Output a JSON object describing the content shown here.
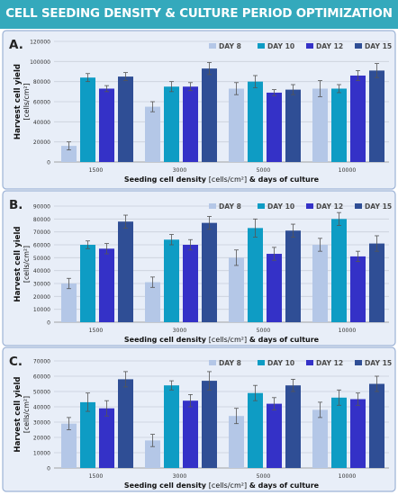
{
  "title": "CELL SEEDING DENSITY & CULTURE PERIOD OPTIMIZATION",
  "colors": {
    "header": "#34a9bc",
    "panel_background": "#e8eef8",
    "panel_border": "#9db3d6",
    "series": [
      "#b4c7e7",
      "#0e9cc4",
      "#3431c7",
      "#2f4e95"
    ]
  },
  "chart_data": [
    {
      "type": "bar",
      "panel_label": "A.",
      "categories": [
        "1500",
        "3000",
        "5000",
        "10000"
      ],
      "series": [
        {
          "name": "DAY 8",
          "values": [
            16000,
            55000,
            73000,
            73000
          ],
          "errors": [
            4000,
            5000,
            6000,
            8000
          ]
        },
        {
          "name": "DAY 10",
          "values": [
            84000,
            75000,
            80000,
            73000
          ],
          "errors": [
            4000,
            5000,
            6000,
            4000
          ]
        },
        {
          "name": "DAY 12",
          "values": [
            73000,
            75000,
            69000,
            86000
          ],
          "errors": [
            3000,
            4000,
            3000,
            5000
          ]
        },
        {
          "name": "DAY 15",
          "values": [
            85000,
            93000,
            72000,
            91000
          ],
          "errors": [
            4000,
            6000,
            5000,
            7000
          ]
        }
      ],
      "ylim": [
        0,
        120000
      ],
      "yticks": [
        "0",
        "20000",
        "40000",
        "60000",
        "80000",
        "100000",
        "120000"
      ],
      "ylabel_main": "Harvest cell yield",
      "ylabel_unit": "[cells/cm²]",
      "xlabel_a": "Seeding cell density ",
      "xlabel_b": "[cells/cm²]",
      "xlabel_c": " & days of culture",
      "grid": true,
      "legend": "top-right"
    },
    {
      "type": "bar",
      "panel_label": "B.",
      "categories": [
        "1500",
        "3000",
        "5000",
        "10000"
      ],
      "series": [
        {
          "name": "DAY 8",
          "values": [
            30000,
            31000,
            50000,
            60000
          ],
          "errors": [
            4000,
            4000,
            6000,
            5000
          ]
        },
        {
          "name": "DAY 10",
          "values": [
            60000,
            64000,
            73000,
            80000
          ],
          "errors": [
            3000,
            4000,
            7000,
            5000
          ]
        },
        {
          "name": "DAY 12",
          "values": [
            57000,
            60000,
            53000,
            51000
          ],
          "errors": [
            4000,
            4000,
            5000,
            4000
          ]
        },
        {
          "name": "DAY 15",
          "values": [
            78000,
            77000,
            71000,
            61000
          ],
          "errors": [
            5000,
            5000,
            5000,
            6000
          ]
        }
      ],
      "ylim": [
        0,
        90000
      ],
      "yticks": [
        "0",
        "10000",
        "20000",
        "30000",
        "40000",
        "50000",
        "60000",
        "70000",
        "80000",
        "90000"
      ],
      "ylabel_main": "Harvest cell yield",
      "ylabel_unit": "[cells/cm²]",
      "xlabel_a": "Seeding cell density ",
      "xlabel_b": "[cells/cm²]",
      "xlabel_c": " & days of culture",
      "grid": true,
      "legend": "top-right"
    },
    {
      "type": "bar",
      "panel_label": "C.",
      "categories": [
        "1500",
        "3000",
        "5000",
        "10000"
      ],
      "series": [
        {
          "name": "DAY 8",
          "values": [
            29000,
            18000,
            34000,
            38000
          ],
          "errors": [
            4000,
            4000,
            5000,
            5000
          ]
        },
        {
          "name": "DAY 10",
          "values": [
            43000,
            54000,
            49000,
            46000
          ],
          "errors": [
            6000,
            3000,
            5000,
            5000
          ]
        },
        {
          "name": "DAY 12",
          "values": [
            39000,
            44000,
            42000,
            45000
          ],
          "errors": [
            5000,
            4000,
            4000,
            4000
          ]
        },
        {
          "name": "DAY 15",
          "values": [
            58000,
            57000,
            54000,
            55000
          ],
          "errors": [
            5000,
            6000,
            4000,
            5000
          ]
        }
      ],
      "ylim": [
        0,
        70000
      ],
      "yticks": [
        "0",
        "10000",
        "20000",
        "30000",
        "40000",
        "50000",
        "60000",
        "70000"
      ],
      "ylabel_main": "Harvest cell yield",
      "ylabel_unit": "[cells/cm²]",
      "xlabel_a": "Seeding cell density ",
      "xlabel_b": "[cells/cm²]",
      "xlabel_c": " & days of culture",
      "grid": true,
      "legend": "top-right"
    }
  ]
}
